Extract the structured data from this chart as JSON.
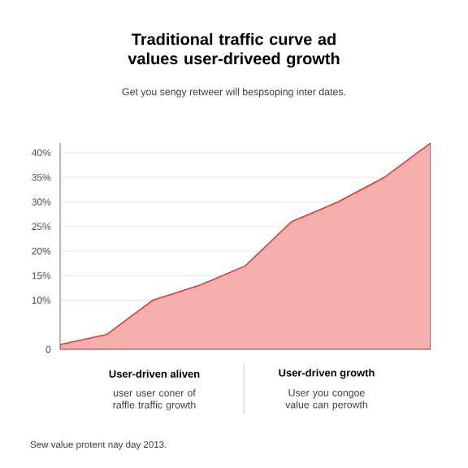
{
  "chart_data": {
    "type": "area",
    "title": "Traditional traffic curve ad values user-driveed growth",
    "subtitle": "Get you sengy retweer will bespsoping inter dates.",
    "categories": [
      null,
      null,
      null,
      null,
      null,
      null,
      null,
      null,
      null
    ],
    "values": [
      1,
      3,
      10,
      13,
      17,
      26,
      30,
      35,
      42
    ],
    "color": "#e53935",
    "ylim": [
      0,
      42
    ],
    "yticks": [
      0,
      {
        "value": 10,
        "label": "10%"
      },
      {
        "value": 15,
        "label": "15%"
      },
      {
        "value": 20,
        "label": "20%"
      },
      {
        "value": 25,
        "label": "25%"
      },
      {
        "value": 30,
        "label": "30%"
      },
      {
        "value": 35,
        "label": "35%"
      },
      {
        "value": 40,
        "label": "40%"
      }
    ],
    "grid": "y",
    "annotations": [
      "User-driven aliven",
      "user user coner of raffle traffic growth",
      "User-driven growth",
      "User you congoe value can perowth",
      "Sew value protent nay day 2013."
    ]
  }
}
